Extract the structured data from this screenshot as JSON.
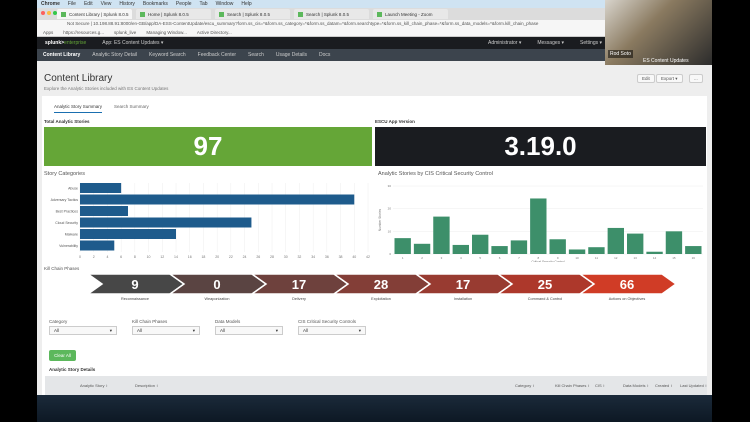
{
  "os_menu": [
    "Chrome",
    "File",
    "Edit",
    "View",
    "History",
    "Bookmarks",
    "People",
    "Tab",
    "Window",
    "Help"
  ],
  "browser": {
    "tabs": [
      {
        "label": "Content Library | Splunk 8.0.5",
        "active": true
      },
      {
        "label": "Home | Splunk 8.0.5"
      },
      {
        "label": "Search | Splunk 8.0.5"
      },
      {
        "label": "Search | Splunk 8.0.5"
      },
      {
        "label": "Launch Meeting - Zoom"
      }
    ],
    "address": "Not Secure | 10.198.88.91:8000/en-GB/app/DA-ESS-ContentUpdate/escu_summary?form.ss_cis=*&form.ss_category=*&form.ss_datam=*&form.searchtype=*&form.ss_kill_chain_phase=*&form.ss_data_models=*&form.kill_chain_phase",
    "bookmarks": [
      "Apps",
      "https://resources.g...",
      "splunk_live",
      "Managing Window...",
      "Active Directory..."
    ]
  },
  "splunk": {
    "logo_a": "splunk>",
    "logo_b": "enterprise",
    "app": "App: ES Content Updates ▾",
    "admin": "Administrator ▾",
    "messages": "Messages ▾",
    "settings": "Settings ▾",
    "nav": [
      "Content Library",
      "Analytic Story Detail",
      "Keyword Search",
      "Feedback Center",
      "Search",
      "Usage Details",
      "Docs"
    ]
  },
  "page": {
    "title": "Content Library",
    "subtitle": "Explore the Analytic Stories included with ES Content Updates",
    "edit": "Edit",
    "export": "Export ▾",
    "more": "...",
    "tabs": [
      "Analytic Story Summary",
      "Search Summary"
    ]
  },
  "singles": [
    {
      "title": "Total Analytic Stories",
      "value": "97",
      "color": "#65a637"
    },
    {
      "title": "ESCU App Version",
      "value": "3.19.0",
      "color": "#1a1c20"
    }
  ],
  "chart_data": [
    {
      "type": "bar",
      "orientation": "horizontal",
      "title": "Story Categories",
      "categories": [
        "Abuse",
        "Adversary Tactics",
        "Best Practices",
        "Cloud Security",
        "Malware",
        "Vulnerability"
      ],
      "values": [
        6,
        40,
        7,
        25,
        14,
        5
      ],
      "xlim": [
        0,
        42
      ],
      "xticks": [
        "0",
        "2",
        "4",
        "6",
        "8",
        "10",
        "12",
        "14",
        "16",
        "18",
        "20",
        "22",
        "24",
        "26",
        "28",
        "30",
        "32",
        "34",
        "36",
        "38",
        "40",
        "42"
      ],
      "color": "#1e5b8c",
      "grid": true
    },
    {
      "type": "bar",
      "title": "Analytic Stories by CIS Critical Security Control",
      "xlabel": "Critical Security Control",
      "ylabel": "Number Stories",
      "categories": [
        "1",
        "2",
        "3",
        "4",
        "5",
        "6",
        "7",
        "8",
        "9",
        "10",
        "11",
        "12",
        "13",
        "14",
        "15",
        "16"
      ],
      "values": [
        7,
        4.5,
        16.5,
        4,
        8.5,
        3.5,
        6,
        24.5,
        6.5,
        2,
        3,
        11.5,
        9,
        1,
        10,
        3.5
      ],
      "ylim": [
        0,
        30
      ],
      "yticks": [
        "0",
        "10",
        "20",
        "30"
      ],
      "color": "#3d8f6a",
      "grid": true
    }
  ],
  "kill_chain": {
    "title": "Kill Chain Phases",
    "phases": [
      {
        "label": "Reconnaissance",
        "value": "9",
        "color": "#474747"
      },
      {
        "label": "Weaponization",
        "value": "0",
        "color": "#5a4442"
      },
      {
        "label": "Delivery",
        "value": "17",
        "color": "#6e413d"
      },
      {
        "label": "Exploitation",
        "value": "28",
        "color": "#833e37"
      },
      {
        "label": "Installation",
        "value": "17",
        "color": "#983b31"
      },
      {
        "label": "Command & Control",
        "value": "25",
        "color": "#ad382b"
      },
      {
        "label": "Actions on Objectives",
        "value": "66",
        "color": "#d03c26"
      }
    ]
  },
  "filters": [
    {
      "label": "Category",
      "value": "All"
    },
    {
      "label": "Kill Chain Phases",
      "value": "All"
    },
    {
      "label": "Data Models",
      "value": "All"
    },
    {
      "label": "CIS Critical Security Controls",
      "value": "All"
    }
  ],
  "clear_all": "Clear All",
  "table": {
    "title": "Analytic Story Details",
    "columns": [
      "Analytic Story ↕",
      "Description ↕",
      "Category ↕",
      "Kill Chain Phases ↕",
      "CIS ↕",
      "Data Models ↕",
      "Created ↕",
      "Last Updated ↕"
    ]
  },
  "webcam": {
    "name": "Rod Soto",
    "meeting": "ES Content Updates"
  }
}
